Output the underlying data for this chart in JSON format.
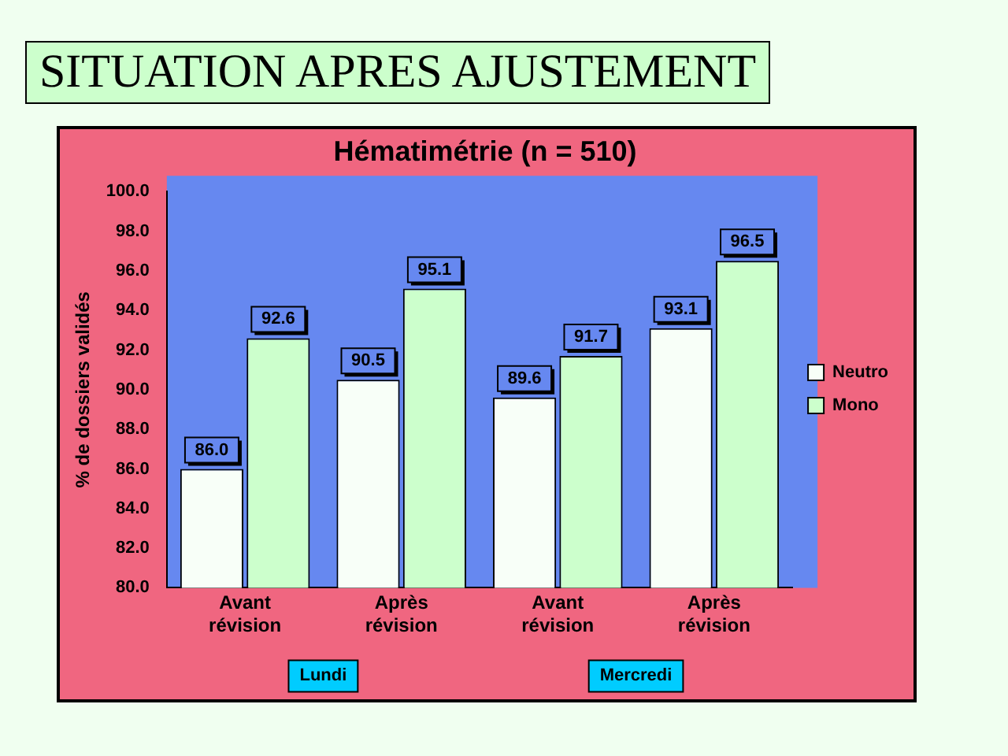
{
  "chart_data": {
    "type": "bar",
    "title": "SITUATION APRES AJUSTEMENT",
    "subtitle": "Hématimétrie (n = 510)",
    "ylabel": "% de dossiers validés",
    "categories": [
      "Avant révision",
      "Après révision",
      "Avant révision",
      "Après révision"
    ],
    "series": [
      {
        "name": "Neutro",
        "color": "#f8fff8",
        "values": [
          86.0,
          90.5,
          89.6,
          93.1
        ],
        "value_labels": [
          "86.0",
          "90.5",
          "89.6",
          "93.1"
        ]
      },
      {
        "name": "Mono",
        "color": "#ccffcc",
        "values": [
          92.6,
          95.1,
          91.7,
          96.5
        ],
        "value_labels": [
          "92.6",
          "95.1",
          "91.7",
          "96.5"
        ]
      }
    ],
    "ylim": [
      80,
      100
    ],
    "yticks": [
      {
        "value": 80,
        "label": "80.0"
      },
      {
        "value": 82,
        "label": "82.0"
      },
      {
        "value": 84,
        "label": "84.0"
      },
      {
        "value": 86,
        "label": "86.0"
      },
      {
        "value": 88,
        "label": "88.0"
      },
      {
        "value": 90,
        "label": "90.0"
      },
      {
        "value": 92,
        "label": "92.0"
      },
      {
        "value": 94,
        "label": "94.0"
      },
      {
        "value": 96,
        "label": "96.0"
      },
      {
        "value": 98,
        "label": "98.0"
      },
      {
        "value": 100,
        "label": "100.0"
      }
    ],
    "annotations": [
      "Lundi",
      "Mercredi"
    ],
    "grid": false,
    "legend": "right"
  }
}
